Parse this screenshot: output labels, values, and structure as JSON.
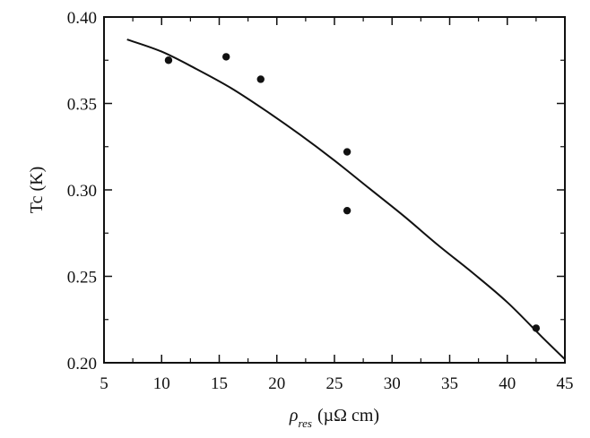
{
  "chart_data": {
    "type": "scatter",
    "title": "",
    "xlabel": {
      "symbol": "ρ",
      "subscript": "res",
      "unit": "(µΩ cm)"
    },
    "ylabel": "Tc (K)",
    "xlim": [
      5,
      45
    ],
    "ylim": [
      0.2,
      0.4
    ],
    "x_ticks": [
      5,
      10,
      15,
      20,
      25,
      30,
      35,
      40,
      45
    ],
    "x_tick_labels": [
      "5",
      "10",
      "15",
      "20",
      "25",
      "30",
      "35",
      "40",
      "45"
    ],
    "y_ticks": [
      0.2,
      0.25,
      0.3,
      0.35,
      0.4
    ],
    "y_tick_labels": [
      "0.20",
      "0.25",
      "0.30",
      "0.35",
      "0.40"
    ],
    "grid": false,
    "legend": "none",
    "series": [
      {
        "kind": "points",
        "x": [
          10.6,
          15.6,
          18.6,
          26.1,
          26.1,
          42.5
        ],
        "y": [
          0.375,
          0.377,
          0.364,
          0.322,
          0.288,
          0.22
        ]
      },
      {
        "kind": "line",
        "x": [
          7,
          10,
          13,
          16,
          19,
          22,
          25,
          28,
          31,
          34,
          37,
          40,
          43,
          45
        ],
        "y": [
          0.387,
          0.38,
          0.37,
          0.359,
          0.346,
          0.332,
          0.317,
          0.301,
          0.285,
          0.268,
          0.252,
          0.235,
          0.215,
          0.202
        ]
      }
    ],
    "colors": {
      "axes": "#111111",
      "markers": "#111111",
      "curve": "#111111",
      "background": "#ffffff"
    }
  }
}
